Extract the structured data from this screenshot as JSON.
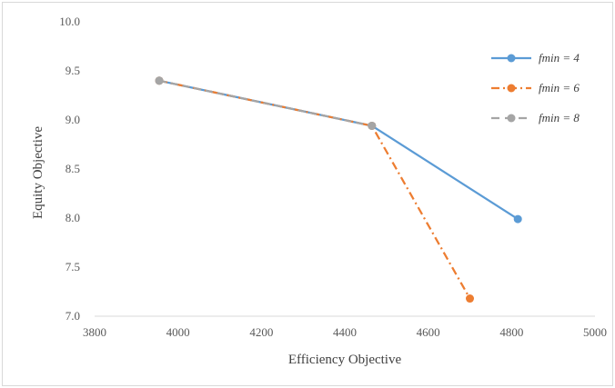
{
  "chart_data": {
    "type": "line",
    "xlabel": "Efficiency  Objective",
    "ylabel": "Equity Objective",
    "xlim": [
      3800,
      5000
    ],
    "ylim": [
      7.0,
      10.0
    ],
    "x_ticks": [
      "3800",
      "4000",
      "4200",
      "4400",
      "4600",
      "4800",
      "5000"
    ],
    "y_ticks": [
      "7.0",
      "7.5",
      "8.0",
      "8.5",
      "9.0",
      "9.5",
      "10.0"
    ],
    "x_tick_values": [
      3800,
      4000,
      4200,
      4400,
      4600,
      4800,
      5000
    ],
    "y_tick_values": [
      7.0,
      7.5,
      8.0,
      8.5,
      9.0,
      9.5,
      10.0
    ],
    "grid": false,
    "legend_position": "right",
    "series": [
      {
        "name": "fmin = 4",
        "color": "#5b9bd5",
        "dash": "solid",
        "points": [
          [
            3955,
            9.4
          ],
          [
            4465,
            8.94
          ],
          [
            4815,
            7.99
          ]
        ]
      },
      {
        "name": "fmin = 6",
        "color": "#ed7d31",
        "dash": "dash-dot",
        "points": [
          [
            3955,
            9.4
          ],
          [
            4465,
            8.94
          ],
          [
            4700,
            7.18
          ]
        ]
      },
      {
        "name": "fmin = 8",
        "color": "#a5a5a5",
        "dash": "dash",
        "points": [
          [
            3955,
            9.4
          ],
          [
            4465,
            8.94
          ]
        ]
      }
    ]
  }
}
